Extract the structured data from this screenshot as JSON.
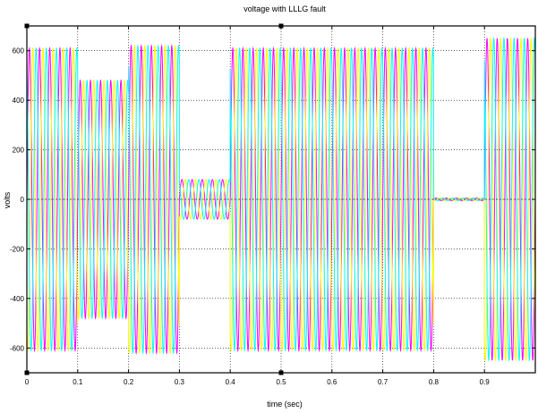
{
  "chart_data": {
    "type": "line",
    "title": "voltage with LLLG fault",
    "xlabel": "time (sec)",
    "ylabel": "volts",
    "xlim": [
      0,
      1.0
    ],
    "ylim": [
      -700,
      700
    ],
    "x_ticks": [
      0,
      0.1,
      0.2,
      0.3,
      0.4,
      0.5,
      0.6,
      0.7,
      0.8,
      0.9
    ],
    "x_tick_labels": [
      "0",
      "0.1",
      "0.2",
      "0.3",
      "0.4",
      "0.5",
      "0.6",
      "0.7",
      "0.8",
      "0.9"
    ],
    "y_ticks": [
      600,
      400,
      200,
      0,
      -200,
      -400,
      -600
    ],
    "y_tick_labels": [
      "600",
      "400",
      "200",
      "0",
      "-200",
      "-400",
      "-600"
    ],
    "grid": true,
    "frequency_hz": 50,
    "series_colors": [
      "#ff00ff",
      "#ffff00",
      "#00ffff"
    ],
    "segments": [
      {
        "start": 0.0,
        "end": 0.1,
        "amplitude": 610
      },
      {
        "start": 0.1,
        "end": 0.2,
        "amplitude": 480
      },
      {
        "start": 0.2,
        "end": 0.3,
        "amplitude": 620
      },
      {
        "start": 0.3,
        "end": 0.4,
        "amplitude": 80
      },
      {
        "start": 0.4,
        "end": 0.8,
        "amplitude": 610
      },
      {
        "start": 0.8,
        "end": 0.9,
        "amplitude": 5
      },
      {
        "start": 0.9,
        "end": 1.0,
        "amplitude": 650
      }
    ]
  }
}
